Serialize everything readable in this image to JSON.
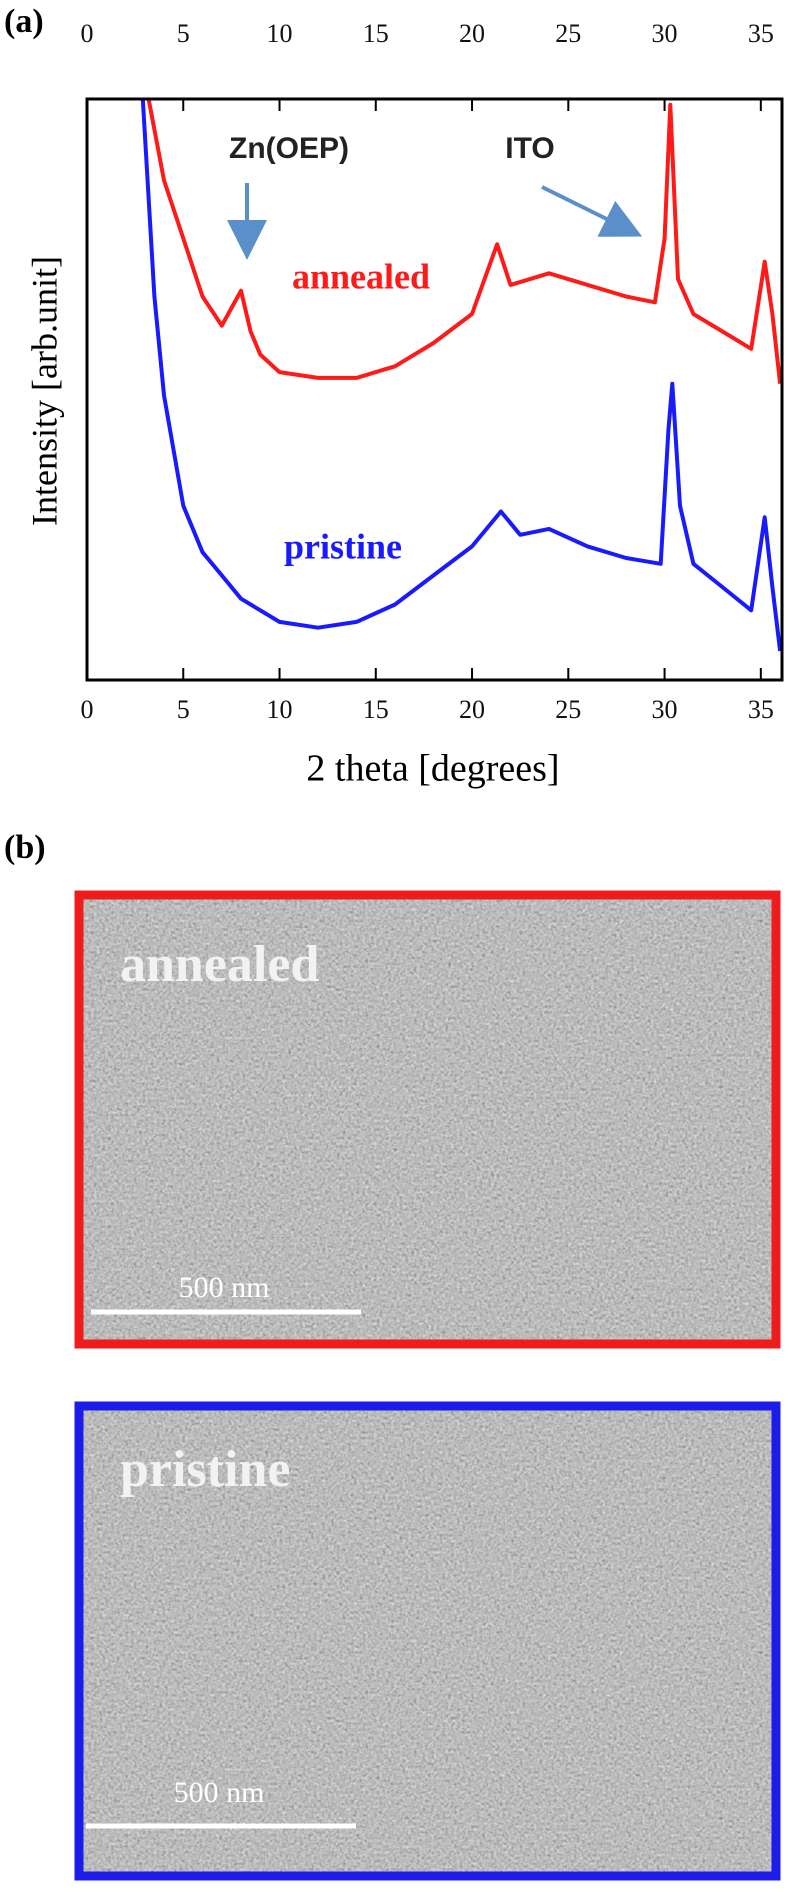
{
  "chart_data": {
    "type": "line",
    "xlabel": "2 theta [degrees]",
    "ylabel": "Intensity [arb.unit]",
    "xlim": [
      0,
      36.1
    ],
    "xticks": [
      0,
      5,
      10,
      15,
      20,
      25,
      30,
      35
    ],
    "ylim": [
      0,
      100
    ],
    "annotations": [
      "Zn(OEP)",
      "ITO"
    ],
    "series": [
      {
        "name": "annealed",
        "color": "#ff1a1a",
        "x": [
          3.2,
          4,
          5,
          6,
          7,
          8,
          8.5,
          9,
          10,
          12,
          14,
          16,
          18,
          20,
          21.3,
          22,
          24,
          26,
          28,
          29.5,
          30,
          30.3,
          30.7,
          31.5,
          33,
          34.5,
          35.2,
          35.6,
          36
        ],
        "values": [
          100,
          86,
          76,
          66,
          61,
          67,
          60,
          56,
          53,
          52,
          52,
          54,
          58,
          63,
          75,
          68,
          70,
          68,
          66,
          65,
          76,
          99,
          69,
          63,
          60,
          57,
          72,
          63,
          51
        ]
      },
      {
        "name": "pristine",
        "color": "#1a1aff",
        "x": [
          2.9,
          3.5,
          4,
          5,
          6,
          7,
          8,
          10,
          12,
          14,
          16,
          18,
          20,
          21.5,
          22.5,
          24,
          26,
          28,
          29.8,
          30.2,
          30.4,
          30.8,
          31.5,
          33,
          34.5,
          35.2,
          35.6,
          36
        ],
        "values": [
          100,
          66,
          49,
          30,
          22,
          18,
          14,
          10,
          9,
          10,
          13,
          18,
          23,
          29,
          25,
          26,
          23,
          21,
          20,
          43,
          51,
          30,
          20,
          16,
          12,
          28,
          16,
          5
        ]
      }
    ]
  },
  "panels": {
    "a": "(a)",
    "b": "(b)"
  },
  "sem_images": [
    {
      "label": "annealed",
      "scale_bar": "500 nm"
    },
    {
      "label": "pristine",
      "scale_bar": "500 nm"
    }
  ]
}
